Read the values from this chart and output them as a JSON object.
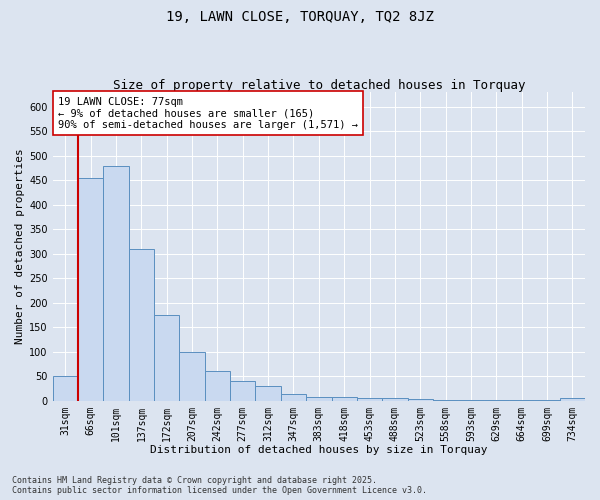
{
  "title": "19, LAWN CLOSE, TORQUAY, TQ2 8JZ",
  "subtitle": "Size of property relative to detached houses in Torquay",
  "xlabel": "Distribution of detached houses by size in Torquay",
  "ylabel": "Number of detached properties",
  "categories": [
    "31sqm",
    "66sqm",
    "101sqm",
    "137sqm",
    "172sqm",
    "207sqm",
    "242sqm",
    "277sqm",
    "312sqm",
    "347sqm",
    "383sqm",
    "418sqm",
    "453sqm",
    "488sqm",
    "523sqm",
    "558sqm",
    "593sqm",
    "629sqm",
    "664sqm",
    "699sqm",
    "734sqm"
  ],
  "values": [
    50,
    455,
    480,
    310,
    175,
    100,
    60,
    40,
    30,
    13,
    8,
    7,
    5,
    5,
    3,
    2,
    2,
    1,
    1,
    1,
    5
  ],
  "bar_color": "#c9d9f0",
  "bar_edge_color": "#5a8fc0",
  "vline_color": "#cc0000",
  "vline_x_index": 1,
  "ylim": [
    0,
    630
  ],
  "yticks": [
    0,
    50,
    100,
    150,
    200,
    250,
    300,
    350,
    400,
    450,
    500,
    550,
    600
  ],
  "annotation_text": "19 LAWN CLOSE: 77sqm\n← 9% of detached houses are smaller (165)\n90% of semi-detached houses are larger (1,571) →",
  "annotation_box_color": "#ffffff",
  "annotation_box_edge": "#cc0000",
  "background_color": "#dce4f0",
  "plot_bg_color": "#dce4f0",
  "footer_line1": "Contains HM Land Registry data © Crown copyright and database right 2025.",
  "footer_line2": "Contains public sector information licensed under the Open Government Licence v3.0.",
  "title_fontsize": 10,
  "subtitle_fontsize": 9,
  "annotation_fontsize": 7.5,
  "tick_label_fontsize": 7,
  "axis_label_fontsize": 8,
  "footer_fontsize": 6,
  "grid_color": "#ffffff"
}
